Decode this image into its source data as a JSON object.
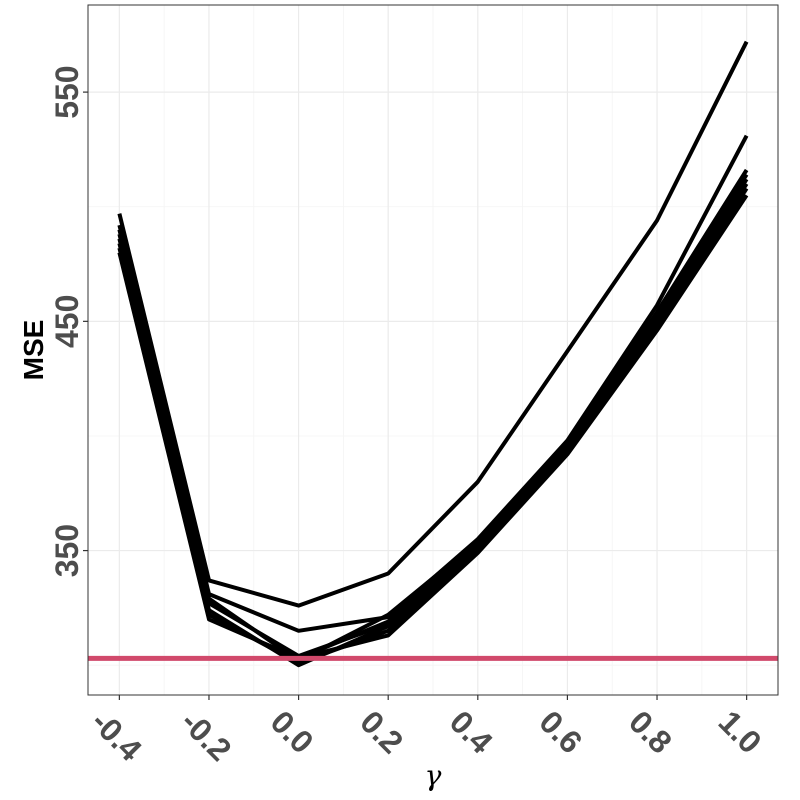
{
  "chart_data": {
    "type": "line",
    "title": "",
    "xlabel": "γ",
    "ylabel": "MSE",
    "x": [
      -0.4,
      -0.2,
      0.0,
      0.2,
      0.4,
      0.6,
      0.8,
      1.0
    ],
    "x_tick_labels": [
      "-0.4",
      "-0.2",
      "0.0",
      "0.2",
      "0.4",
      "0.6",
      "0.8",
      "1.0"
    ],
    "y_ticks": [
      350,
      450,
      550
    ],
    "y_tick_labels": [
      "350",
      "450",
      "550"
    ],
    "xlim": [
      -0.47,
      1.07
    ],
    "ylim": [
      287,
      588
    ],
    "grid": true,
    "legend": "none",
    "series": [
      {
        "values": [
          497,
          337,
          326,
          340,
          380,
          437,
          494,
          572
        ]
      },
      {
        "values": [
          492,
          331,
          315,
          321,
          355,
          398,
          457,
          531
        ]
      },
      {
        "values": [
          490,
          329,
          302,
          322,
          354,
          397,
          454,
          516
        ]
      },
      {
        "values": [
          488,
          328,
          303,
          319,
          353,
          396,
          452,
          514
        ]
      },
      {
        "values": [
          486,
          327,
          304,
          318,
          352,
          395,
          450,
          512
        ]
      },
      {
        "values": [
          484,
          324,
          300,
          317,
          351,
          394,
          449,
          510
        ]
      },
      {
        "values": [
          482,
          322,
          301,
          315,
          350,
          393,
          447,
          508
        ]
      },
      {
        "values": [
          480,
          320,
          303,
          313,
          349,
          392,
          446,
          505
        ]
      }
    ],
    "hline": {
      "value": 303,
      "color": "#d1496b"
    },
    "line_color": "#000000",
    "grid_major_color": "#ebebeb",
    "grid_minor_color": "#f4f4f4",
    "panel_border_color": "#333333"
  }
}
